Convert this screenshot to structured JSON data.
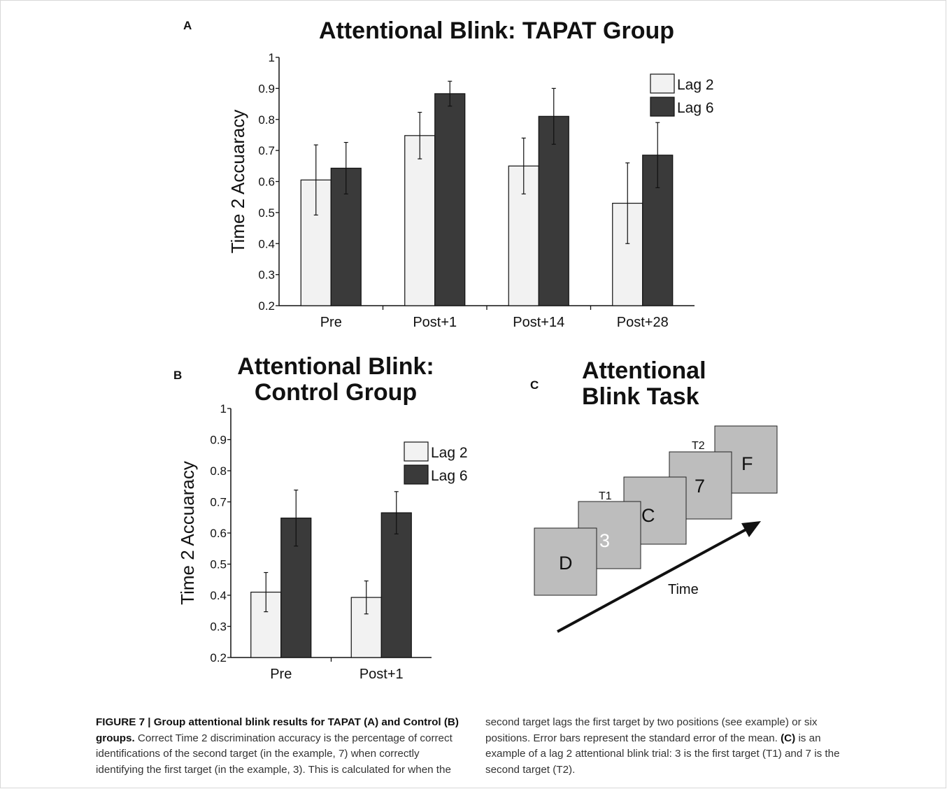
{
  "panels": {
    "a_letter": "A",
    "b_letter": "B",
    "c_letter": "C"
  },
  "chart_data": [
    {
      "type": "bar",
      "title": "Attentional Blink: TAPAT Group",
      "xlabel": "",
      "ylabel": "Time 2 Accuaracy",
      "ylim": [
        0.2,
        1
      ],
      "yticks": [
        "0.2",
        "0.3",
        "0.4",
        "0.5",
        "0.6",
        "0.7",
        "0.8",
        "0.9",
        "1"
      ],
      "categories": [
        "Pre",
        "Post+1",
        "Post+14",
        "Post+28"
      ],
      "series": [
        {
          "name": "Lag 2",
          "color": "#f2f2f2",
          "values": [
            0.605,
            0.748,
            0.65,
            0.53
          ],
          "errors": [
            0.113,
            0.075,
            0.09,
            0.13
          ]
        },
        {
          "name": "Lag 6",
          "color": "#3a3a3a",
          "values": [
            0.643,
            0.883,
            0.81,
            0.685
          ],
          "errors": [
            0.083,
            0.04,
            0.09,
            0.105
          ]
        }
      ],
      "legend": "top-right",
      "grid": false
    },
    {
      "type": "bar",
      "title_line1": "Attentional Blink:",
      "title_line2": "Control Group",
      "xlabel": "",
      "ylabel": "Time 2 Accuaracy",
      "ylim": [
        0.2,
        1
      ],
      "yticks": [
        "0.2",
        "0.3",
        "0.4",
        "0.5",
        "0.6",
        "0.7",
        "0.8",
        "0.9",
        "1"
      ],
      "categories": [
        "Pre",
        "Post+1"
      ],
      "series": [
        {
          "name": "Lag 2",
          "color": "#f2f2f2",
          "values": [
            0.41,
            0.393
          ],
          "errors": [
            0.063,
            0.053
          ]
        },
        {
          "name": "Lag 6",
          "color": "#3a3a3a",
          "values": [
            0.648,
            0.665
          ],
          "errors": [
            0.09,
            0.068
          ]
        }
      ],
      "legend": "top-right",
      "grid": false
    }
  ],
  "task": {
    "title_line1": "Attentional",
    "title_line2": "Blink Task",
    "cards": [
      "D",
      "3",
      "C",
      "7",
      "F"
    ],
    "t1_label": "T1",
    "t2_label": "T2",
    "time_label": "Time",
    "card_color": "#bdbdbd",
    "highlight_text_color": "#ffffff"
  },
  "caption": {
    "label": "FIGURE 7 | Group attentional blink results for TAPAT (A) and Control (B) groups.",
    "left_body": "Correct Time 2 discrimination accuracy is the percentage of correct identifications of the second target (in the example, 7) when correctly identifying the first target (in the example, 3). This is calculated for when the",
    "right_part1": "second target lags the first target by two positions (see example) or six positions. Error bars represent the standard error of the mean.",
    "right_bold": "(C)",
    "right_part2": "is an example of a lag 2 attentional blink trial: 3 is the first target (T1) and 7 is the second target (T2)."
  }
}
